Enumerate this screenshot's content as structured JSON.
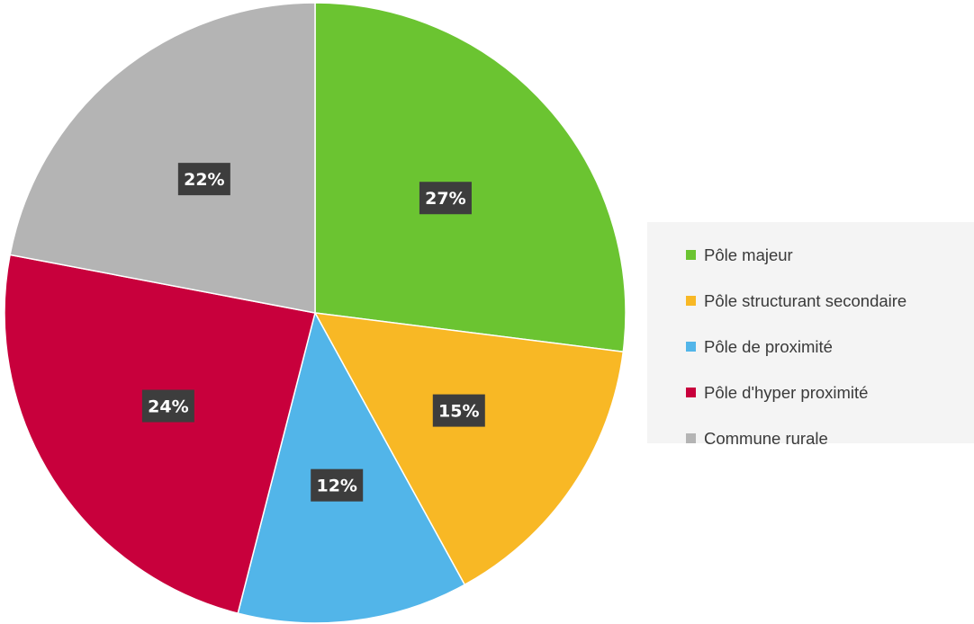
{
  "chart_data": {
    "type": "pie",
    "title": "",
    "categories": [
      "Pôle majeur",
      "Pôle structurant secondaire",
      "Pôle de proximité",
      "Pôle d'hyper proximité",
      "Commune rurale"
    ],
    "values": [
      27,
      15,
      12,
      24,
      22
    ],
    "data_labels": [
      "27%",
      "15%",
      "12%",
      "24%",
      "22%"
    ],
    "colors": [
      "#6bc431",
      "#f8b825",
      "#52b5e9",
      "#c8003c",
      "#b4b4b4"
    ],
    "start_angle": "12 o'clock",
    "direction": "clockwise",
    "legend_position": "right"
  }
}
